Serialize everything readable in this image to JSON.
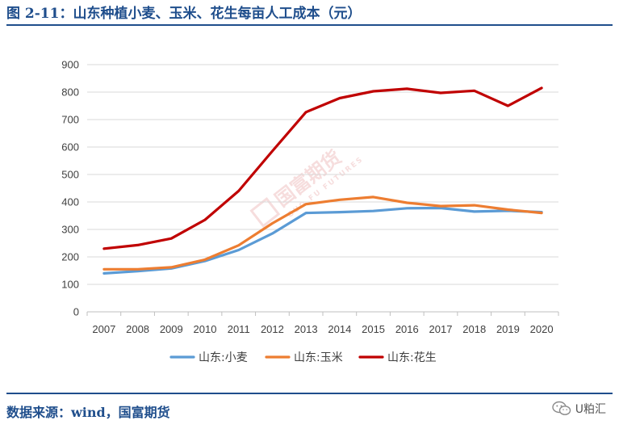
{
  "header": {
    "title": "图 2-11：山东种植小麦、玉米、花生每亩人工成本（元）"
  },
  "footer": {
    "source": "数据来源：wind，国富期货",
    "wechat_label": "U粕汇",
    "wechat_icon": "wechat-icon"
  },
  "watermark": {
    "text": "国富期货",
    "subtext": "GUO FU FUTURES"
  },
  "colors": {
    "title": "#1f4e8c",
    "grid": "#d9d9d9"
  },
  "chart_data": {
    "type": "line",
    "x": [
      "2007",
      "2008",
      "2009",
      "2010",
      "2011",
      "2012",
      "2013",
      "2014",
      "2015",
      "2016",
      "2017",
      "2018",
      "2019",
      "2020"
    ],
    "ylim": [
      0,
      900
    ],
    "yticks": [
      0,
      100,
      200,
      300,
      400,
      500,
      600,
      700,
      800,
      900
    ],
    "grid": true,
    "legend_position": "bottom",
    "series": [
      {
        "name": "山东:小麦",
        "color": "#5b9bd5",
        "values": [
          140,
          148,
          158,
          185,
          225,
          285,
          360,
          363,
          367,
          377,
          378,
          365,
          368,
          363
        ]
      },
      {
        "name": "山东:玉米",
        "color": "#ed7d31",
        "values": [
          155,
          155,
          162,
          190,
          242,
          322,
          392,
          408,
          418,
          397,
          385,
          388,
          372,
          360
        ]
      },
      {
        "name": "山东:花生",
        "color": "#c00000",
        "values": [
          230,
          243,
          267,
          335,
          440,
          585,
          727,
          778,
          803,
          812,
          797,
          805,
          750,
          815
        ]
      }
    ]
  }
}
